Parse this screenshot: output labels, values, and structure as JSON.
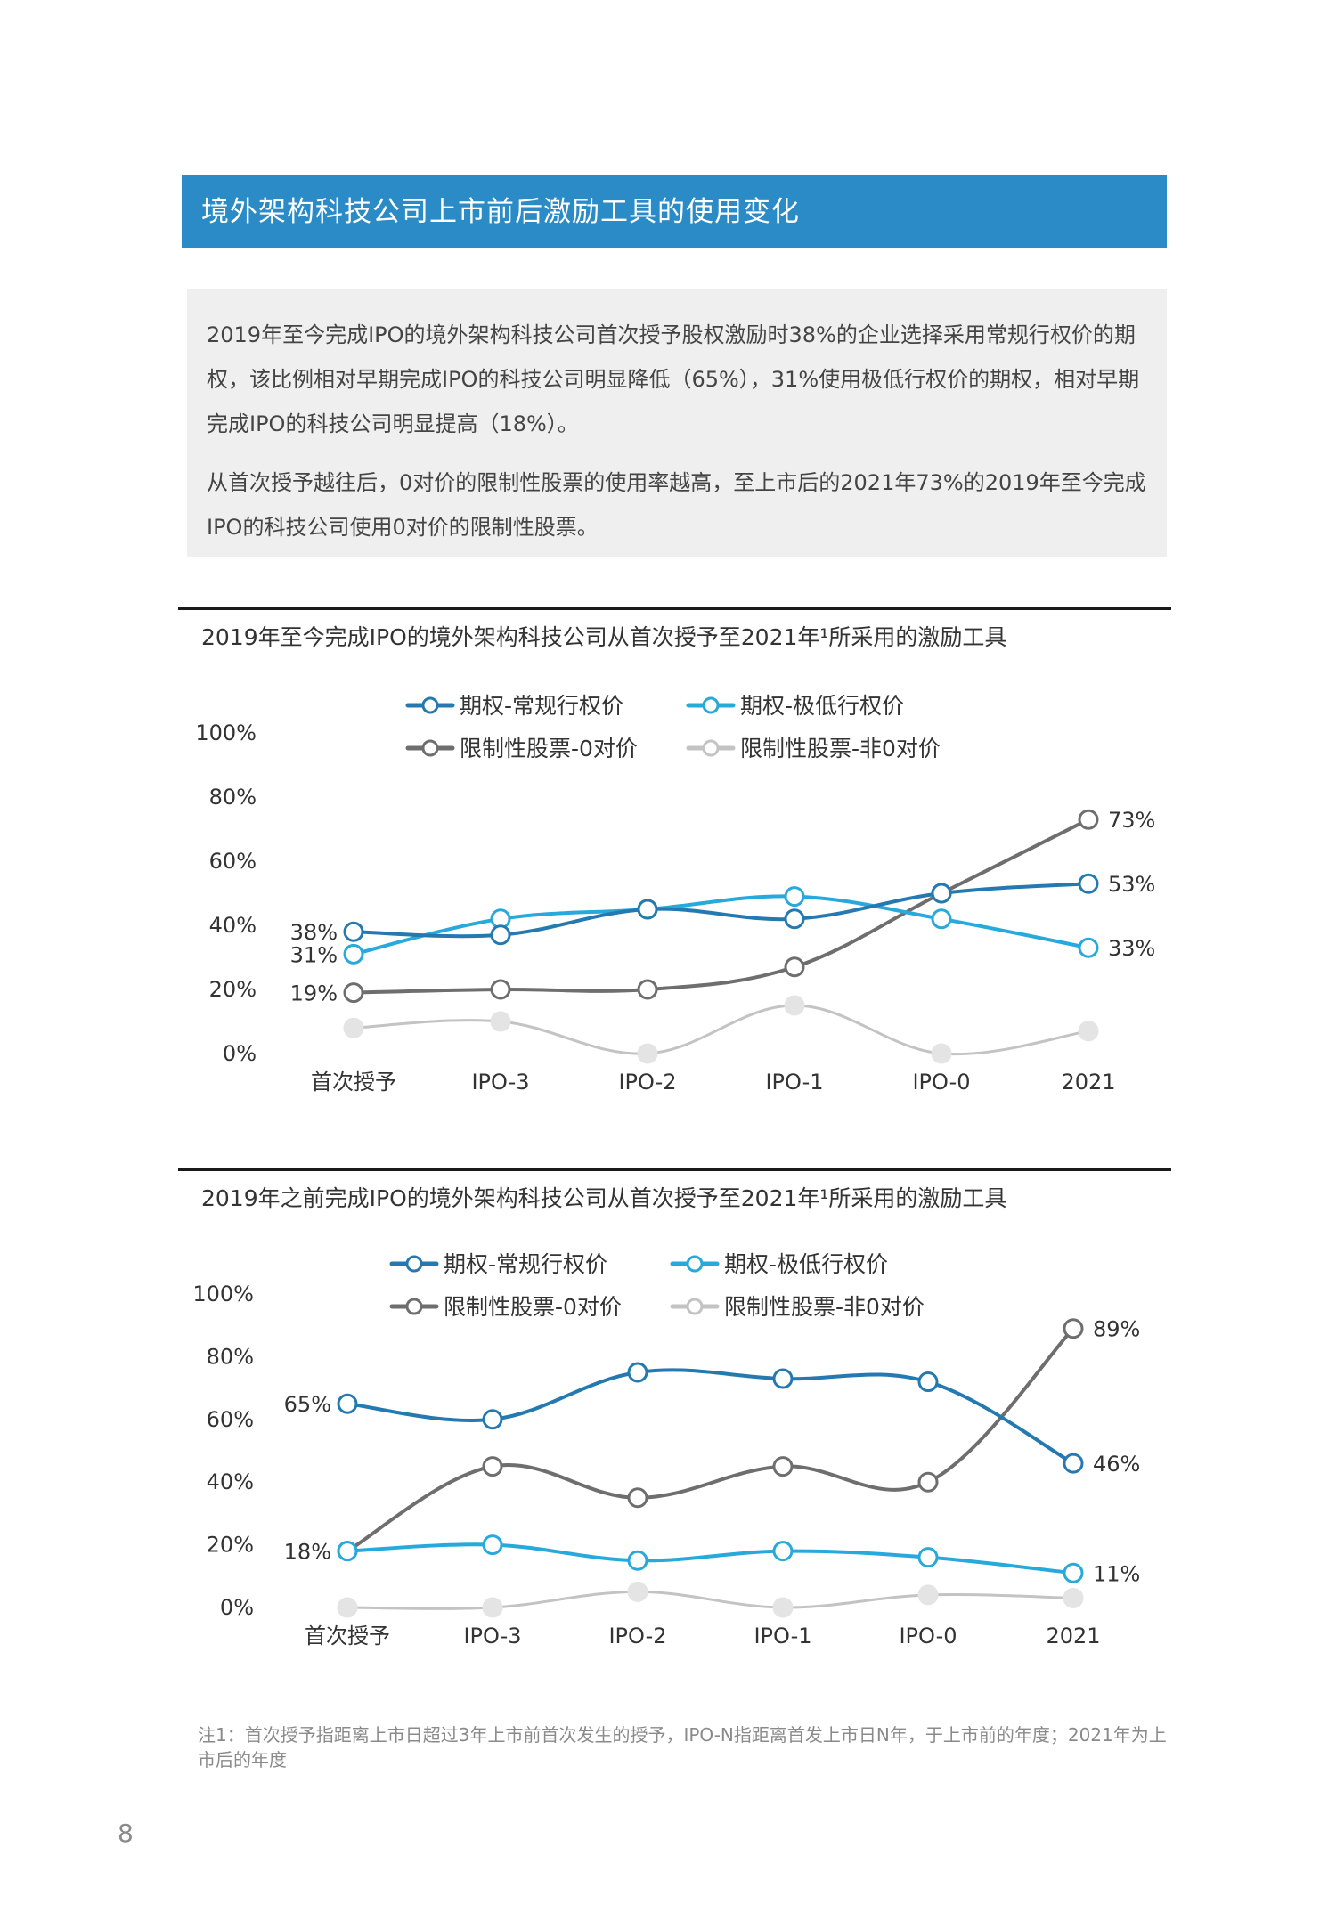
{
  "section_title": "境外架构科技公司上市前后激励工具的使用变化",
  "summary": [
    "2019年至今完成IPO的境外架构科技公司首次授予股权激励时38%的企业选择采用常规行权价的期权，该比例相对早期完成IPO的科技公司明显降低（65%），31%使用极低行权价的期权，相对早期完成IPO的科技公司明显提高（18%）。",
    "从首次授予越往后，0对价的限制性股票的使用率越高，至上市后的2021年73%的2019年至今完成IPO的科技公司使用0对价的限制性股票。"
  ],
  "chart_data": [
    {
      "type": "line",
      "title": "2019年至今完成IPO的境外架构科技公司从首次授予至2021年¹所采用的激励工具",
      "categories": [
        "首次授予",
        "IPO-3",
        "IPO-2",
        "IPO-1",
        "IPO-0",
        "2021"
      ],
      "ylim": [
        0,
        100
      ],
      "yticks": [
        "0%",
        "20%",
        "40%",
        "60%",
        "80%",
        "100%"
      ],
      "legend_position": "top",
      "series": [
        {
          "name": "期权-常规行权价",
          "color": "#2479b0",
          "values": [
            38,
            37,
            45,
            42,
            50,
            53
          ],
          "labels": {
            "0": "38%",
            "5": "53%"
          }
        },
        {
          "name": "期权-极低行权价",
          "color": "#27a9dc",
          "values": [
            31,
            42,
            45,
            49,
            42,
            33
          ],
          "labels": {
            "0": "31%",
            "5": "33%"
          }
        },
        {
          "name": "限制性股票-0对价",
          "color": "#6e6e6e",
          "values": [
            19,
            20,
            20,
            27,
            50,
            73
          ],
          "labels": {
            "0": "19%",
            "5": "73%"
          }
        },
        {
          "name": "限制性股票-非0对价",
          "color": "#c3c3c3",
          "values": [
            8,
            10,
            0,
            15,
            0,
            7
          ],
          "labels": {}
        }
      ]
    },
    {
      "type": "line",
      "title": "2019年之前完成IPO的境外架构科技公司从首次授予至2021年¹所采用的激励工具",
      "categories": [
        "首次授予",
        "IPO-3",
        "IPO-2",
        "IPO-1",
        "IPO-0",
        "2021"
      ],
      "ylim": [
        0,
        100
      ],
      "yticks": [
        "0%",
        "20%",
        "40%",
        "60%",
        "80%",
        "100%"
      ],
      "legend_position": "top",
      "series": [
        {
          "name": "期权-常规行权价",
          "color": "#2479b0",
          "values": [
            65,
            60,
            75,
            73,
            72,
            46
          ],
          "labels": {
            "0": "65%",
            "5": "46%"
          }
        },
        {
          "name": "期权-极低行权价",
          "color": "#27a9dc",
          "values": [
            18,
            20,
            15,
            18,
            16,
            11
          ],
          "labels": {
            "0": "18%",
            "5": "11%"
          }
        },
        {
          "name": "限制性股票-0对价",
          "color": "#6e6e6e",
          "values": [
            18,
            45,
            35,
            45,
            40,
            89
          ],
          "labels": {
            "5": "89%"
          }
        },
        {
          "name": "限制性股票-非0对价",
          "color": "#c3c3c3",
          "values": [
            0,
            0,
            5,
            0,
            4,
            3
          ],
          "labels": {}
        }
      ]
    }
  ],
  "footnote": "注1：首次授予指距离上市日超过3年上市前首次发生的授予，IPO-N指距离首发上市日N年，于上市前的年度；2021年为上市后的年度",
  "page_number": "8"
}
